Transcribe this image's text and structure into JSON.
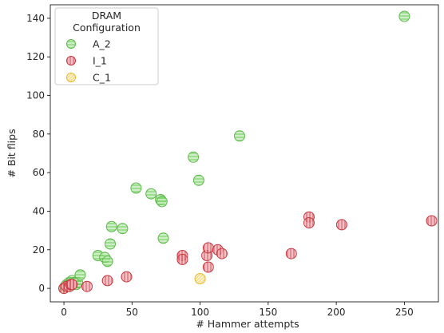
{
  "chart_data": {
    "type": "scatter",
    "xlabel": "# Hammer attempts",
    "ylabel": "# Bit flips",
    "xlim": [
      -10,
      275
    ],
    "ylim": [
      -7,
      147
    ],
    "xticks": [
      0,
      50,
      100,
      150,
      200,
      250
    ],
    "yticks": [
      0,
      20,
      40,
      60,
      80,
      100,
      120,
      140
    ],
    "grid": false,
    "legend": {
      "title_line1": "DRAM",
      "title_line2": "Configuration",
      "placement": "top-left"
    },
    "series": [
      {
        "name": "A_2",
        "color": "#7fd36b",
        "edge": "#5cb84a",
        "hatch": "horizontal",
        "points": [
          [
            0,
            0
          ],
          [
            1,
            1
          ],
          [
            2,
            2
          ],
          [
            3,
            1
          ],
          [
            4,
            3
          ],
          [
            5,
            3
          ],
          [
            6,
            4
          ],
          [
            7,
            2
          ],
          [
            8,
            3
          ],
          [
            9,
            2
          ],
          [
            10,
            3
          ],
          [
            12,
            7
          ],
          [
            25,
            17
          ],
          [
            30,
            16
          ],
          [
            32,
            14
          ],
          [
            34,
            23
          ],
          [
            35,
            32
          ],
          [
            43,
            31
          ],
          [
            53,
            52
          ],
          [
            64,
            49
          ],
          [
            71,
            46
          ],
          [
            72,
            45
          ],
          [
            73,
            26
          ],
          [
            95,
            68
          ],
          [
            99,
            56
          ],
          [
            129,
            79
          ],
          [
            250,
            141
          ]
        ]
      },
      {
        "name": "I_1",
        "color": "#e0606a",
        "edge": "#c63840",
        "hatch": "vertical",
        "points": [
          [
            0,
            0
          ],
          [
            2,
            1
          ],
          [
            4,
            1
          ],
          [
            5,
            2
          ],
          [
            6,
            2
          ],
          [
            17,
            1
          ],
          [
            32,
            4
          ],
          [
            46,
            6
          ],
          [
            87,
            17
          ],
          [
            87,
            15
          ],
          [
            105,
            17
          ],
          [
            106,
            21
          ],
          [
            106,
            11
          ],
          [
            113,
            20
          ],
          [
            116,
            18
          ],
          [
            167,
            18
          ],
          [
            180,
            37
          ],
          [
            180,
            34
          ],
          [
            204,
            33
          ],
          [
            270,
            35
          ]
        ]
      },
      {
        "name": "C_1",
        "color": "#f3d060",
        "edge": "#e5b82a",
        "hatch": "diagonal",
        "points": [
          [
            100,
            5
          ]
        ]
      }
    ]
  }
}
